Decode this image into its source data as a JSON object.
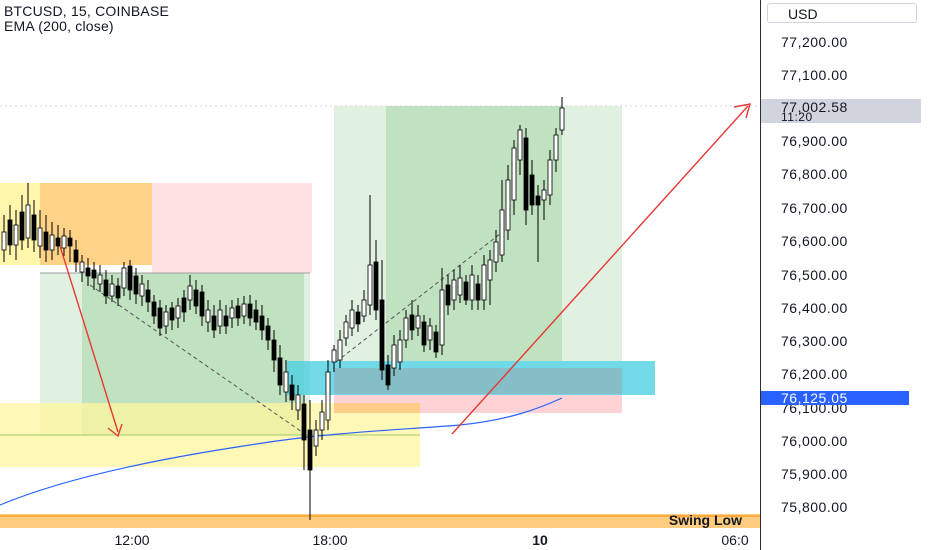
{
  "header": {
    "symbol": "BTCUSD, 15, COINBASE",
    "indicator": "EMA (200, close)"
  },
  "price_axis": {
    "currency": "USD",
    "labels": [
      "77,200.00",
      "77,100.00",
      "76,900.00",
      "76,800.00",
      "76,700.00",
      "76,600.00",
      "76,500.00",
      "76,400.00",
      "76,300.00",
      "76,200.00",
      "76,100.00",
      "76,000.00",
      "75,900.00",
      "75,800.00"
    ],
    "last_price": "77,002.58",
    "countdown": "11:20",
    "ema_value": "76,125.05"
  },
  "time_axis": {
    "labels": [
      {
        "text": "12:00",
        "bold": false
      },
      {
        "text": "18:00",
        "bold": false
      },
      {
        "text": "10",
        "bold": true
      },
      {
        "text": "06:0",
        "bold": false
      }
    ]
  },
  "annotations": {
    "swing_low": "Swing Low"
  },
  "colors": {
    "bull_candle": "#ffffff",
    "bear_candle": "#000000",
    "ema_line": "#2962ff",
    "arrow": "#e53935",
    "profit_zone": "#4caf50",
    "loss_zone": "#f44336",
    "fvg_zone": "#00bcd4",
    "supply_zone": "#ffeb3b"
  }
}
